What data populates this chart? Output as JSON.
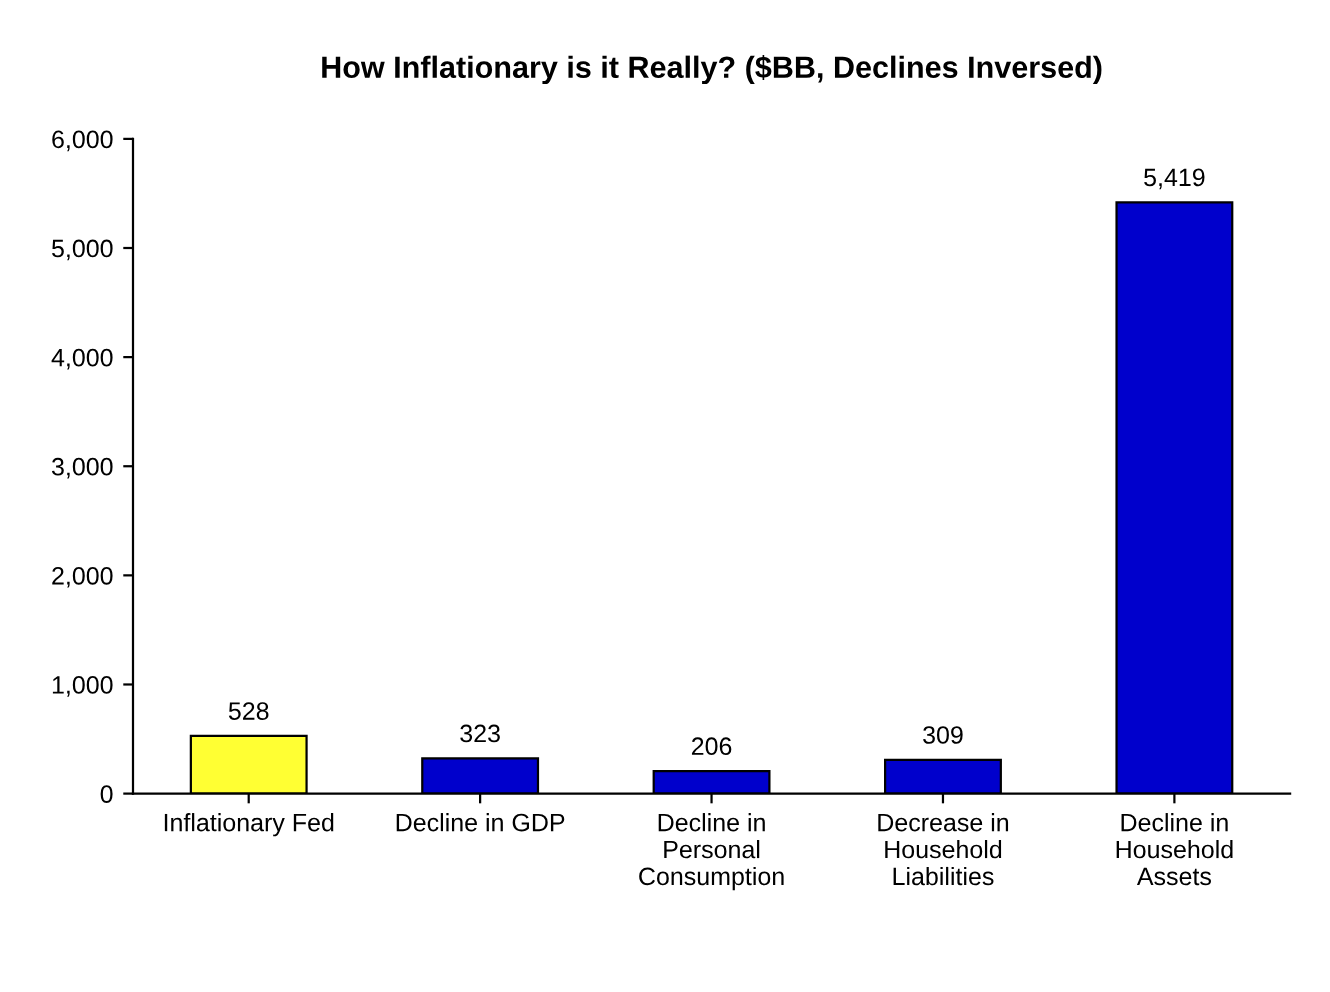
{
  "chart_data": {
    "type": "bar",
    "title": "How Inflationary is it Really? ($BB, Declines Inversed)",
    "categories": [
      "Inflationary Fed",
      "Decline in GDP",
      "Decline in\nPersonal\nConsumption",
      "Decrease in\nHousehold\nLiabilities",
      "Decline in\nHousehold\nAssets"
    ],
    "values": [
      528,
      323,
      206,
      309,
      5419
    ],
    "colors": [
      "#ffff33",
      "#0000cc",
      "#0000cc",
      "#0000cc",
      "#0000cc"
    ],
    "value_labels": [
      "528",
      "323",
      "206",
      "309",
      "5,419"
    ],
    "ylim": [
      0,
      6000
    ],
    "yticks": [
      0,
      {
        "value": 1000,
        "label": "1,000"
      },
      {
        "value": 2000,
        "label": "2,000"
      },
      {
        "value": 3000,
        "label": "3,000"
      },
      {
        "value": 4000,
        "label": "4,000"
      },
      {
        "value": 5000,
        "label": "5,000"
      },
      {
        "value": 6000,
        "label": "6,000"
      }
    ],
    "grid": false,
    "legend": false
  }
}
